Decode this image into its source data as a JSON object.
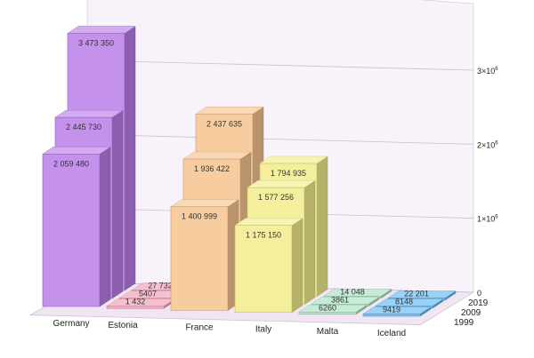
{
  "chart_data": {
    "type": "bar",
    "title": "",
    "xlabel": "",
    "ylabel": "",
    "categories": [
      "Germany",
      "Estonia",
      "France",
      "Italy",
      "Malta",
      "Iceland"
    ],
    "series": [
      {
        "name": "1999",
        "values": [
          2059480,
          1432,
          1400999,
          1175150,
          6260,
          9419
        ]
      },
      {
        "name": "2009",
        "values": [
          2445730,
          5407,
          1936422,
          1577256,
          3861,
          8148
        ]
      },
      {
        "name": "2019",
        "values": [
          3473350,
          27732,
          2437635,
          1794935,
          14048,
          22201
        ]
      }
    ],
    "value_labels": [
      [
        "2 059 480",
        "1 432",
        "1 400 999",
        "1 175 150",
        "6260",
        "9419"
      ],
      [
        "2 445 730",
        "5407",
        "1 936 422",
        "1 577 256",
        "3861",
        "8148"
      ],
      [
        "3 473 350",
        "27 732",
        "2 437 635",
        "1 794 935",
        "14 048",
        "22 201"
      ]
    ],
    "y_ticks": [
      {
        "value": 0,
        "label": "0"
      },
      {
        "value": 1000000,
        "label": "1×10",
        "exp": "6"
      },
      {
        "value": 2000000,
        "label": "2×10",
        "exp": "6"
      },
      {
        "value": 3000000,
        "label": "3×10",
        "exp": "6"
      }
    ],
    "ylim": [
      0,
      3500000
    ],
    "grid": true,
    "colors": {
      "Germany": "#b97de8",
      "Estonia": "#f0a0b8",
      "France": "#f5c48e",
      "Italy": "#f2ec8c",
      "Malta": "#a8e0c0",
      "Iceland": "#66b8f0"
    }
  }
}
